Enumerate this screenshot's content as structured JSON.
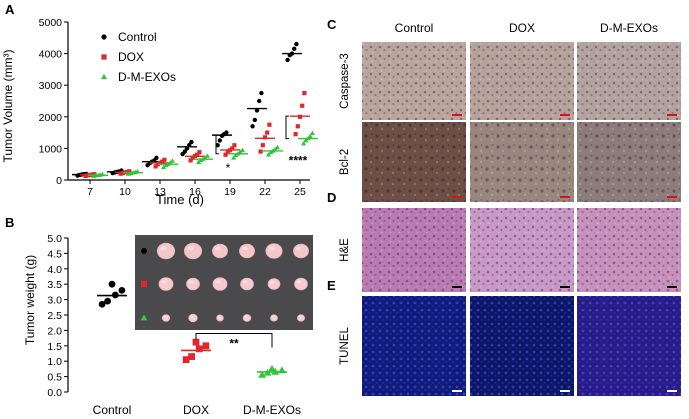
{
  "panelA": {
    "letter": "A",
    "chart_data": {
      "type": "scatter",
      "xlabel": "Time (d)",
      "ylabel": "Tumor Volume (mm³)",
      "categories": [
        "7",
        "10",
        "13",
        "16",
        "19",
        "22",
        "25"
      ],
      "ylim": [
        0,
        5000
      ],
      "yticks": [
        "0",
        "1000",
        "2000",
        "3000",
        "4000",
        "5000"
      ],
      "series": [
        {
          "name": "Control",
          "color": "#000000",
          "marker": "circle",
          "means": [
            170,
            260,
            580,
            1050,
            1420,
            2260,
            4000
          ],
          "points": [
            [
              140,
              160,
              175,
              185,
              190
            ],
            [
              220,
              240,
              255,
              270,
              300
            ],
            [
              470,
              530,
              580,
              620,
              700
            ],
            [
              820,
              900,
              1000,
              1100,
              1200
            ],
            [
              1100,
              1250,
              1400,
              1450,
              1500
            ],
            [
              1700,
              1900,
              2200,
              2500,
              2750
            ],
            [
              3800,
              3950,
              4000,
              4150,
              4300
            ]
          ]
        },
        {
          "name": "DOX",
          "color": "#e3262b",
          "marker": "square",
          "means": [
            160,
            240,
            540,
            750,
            950,
            1320,
            2020
          ],
          "points": [
            [
              130,
              150,
              160,
              170,
              185
            ],
            [
              200,
              220,
              240,
              255,
              275
            ],
            [
              430,
              500,
              540,
              580,
              640
            ],
            [
              620,
              700,
              760,
              800,
              880
            ],
            [
              800,
              880,
              940,
              1000,
              1100
            ],
            [
              900,
              1100,
              1350,
              1500,
              1750
            ],
            [
              1450,
              1700,
              2000,
              2350,
              2750
            ]
          ]
        },
        {
          "name": "D-M-EXOs",
          "color": "#2ec637",
          "marker": "triangle",
          "means": [
            150,
            230,
            500,
            660,
            830,
            920,
            1310
          ],
          "points": [
            [
              120,
              140,
              150,
              160,
              175
            ],
            [
              190,
              210,
              230,
              245,
              265
            ],
            [
              400,
              460,
              500,
              540,
              600
            ],
            [
              560,
              620,
              660,
              700,
              760
            ],
            [
              700,
              780,
              830,
              880,
              940
            ],
            [
              800,
              870,
              920,
              970,
              1030
            ],
            [
              1150,
              1250,
              1310,
              1380,
              1480
            ]
          ]
        }
      ],
      "annotations": [
        {
          "category": "19",
          "text": "*"
        },
        {
          "category": "25",
          "text": "****"
        }
      ]
    }
  },
  "panelB": {
    "letter": "B",
    "chart_data": {
      "type": "scatter",
      "ylabel": "Tumor weight (g)",
      "categories": [
        "Control",
        "DOX",
        "D-M-EXOs"
      ],
      "ylim": [
        0,
        5.0
      ],
      "yticks": [
        "0.0",
        "0.5",
        "1.0",
        "1.5",
        "2.0",
        "2.5",
        "3.0",
        "3.5",
        "4.0",
        "4.5",
        "5.0"
      ],
      "series": [
        {
          "name": "Control",
          "color": "#000000",
          "marker": "circle",
          "mean": 3.13,
          "points": [
            2.85,
            2.95,
            3.15,
            3.3,
            3.5
          ]
        },
        {
          "name": "DOX",
          "color": "#e3262b",
          "marker": "square",
          "mean": 1.35,
          "points": [
            1.05,
            1.15,
            1.4,
            1.5,
            1.62
          ]
        },
        {
          "name": "D-M-EXOs",
          "color": "#2ec637",
          "marker": "triangle",
          "mean": 0.65,
          "points": [
            0.55,
            0.62,
            0.65,
            0.7,
            0.75
          ]
        }
      ],
      "significance": {
        "from": "DOX",
        "to": "D-M-EXOs",
        "text": "**"
      }
    }
  },
  "histology": {
    "columns": [
      "Control",
      "DOX",
      "D-M-EXOs"
    ],
    "rows": [
      {
        "panel": "C",
        "label": "Caspase-3",
        "colors": [
          "#b9a59c",
          "#b6a29a",
          "#b3a39e"
        ],
        "dots": "#584a66"
      },
      {
        "panel": "",
        "label": "Bcl-2",
        "colors": [
          "#6e4f46",
          "#99867f",
          "#8c7d7c"
        ],
        "dots": "#3a2623"
      },
      {
        "panel": "D",
        "label": "H&E",
        "colors": [
          "#b97bb2",
          "#c898c6",
          "#c790bd"
        ],
        "dots": "#6d2f79"
      },
      {
        "panel": "E",
        "label": "TUNEL",
        "colors": [
          "#101a78",
          "#0d1565",
          "#2a1a85"
        ],
        "dots": "#3d4fd0"
      }
    ]
  }
}
